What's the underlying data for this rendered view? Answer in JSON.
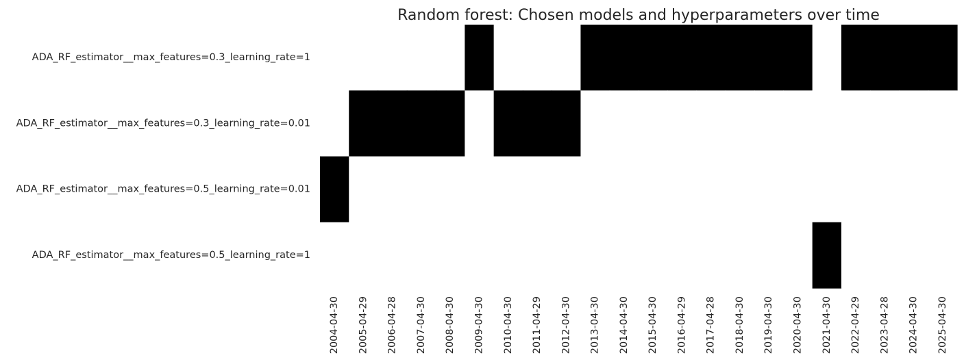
{
  "chart_data": {
    "type": "heatmap",
    "title": "Random forest: Chosen models and hyperparameters over time",
    "xlabel": "",
    "ylabel": "",
    "colorbar": false,
    "colors": {
      "selected": "#000000",
      "not_selected": "#ffffff",
      "text": "#262626"
    },
    "rows": [
      "ADA_RF_estimator__max_features=0.3_learning_rate=1",
      "ADA_RF_estimator__max_features=0.3_learning_rate=0.01",
      "ADA_RF_estimator__max_features=0.5_learning_rate=0.01",
      "ADA_RF_estimator__max_features=0.5_learning_rate=1"
    ],
    "columns": [
      "2004-04-30",
      "2005-04-29",
      "2006-04-28",
      "2007-04-30",
      "2008-04-30",
      "2009-04-30",
      "2010-04-30",
      "2011-04-29",
      "2012-04-30",
      "2013-04-30",
      "2014-04-30",
      "2015-04-30",
      "2016-04-29",
      "2017-04-28",
      "2018-04-30",
      "2019-04-30",
      "2020-04-30",
      "2021-04-30",
      "2022-04-29",
      "2023-04-28",
      "2024-04-30",
      "2025-04-30"
    ],
    "values": [
      [
        0,
        0,
        0,
        0,
        0,
        1,
        0,
        0,
        0,
        1,
        1,
        1,
        1,
        1,
        1,
        1,
        1,
        0,
        1,
        1,
        1,
        1
      ],
      [
        0,
        1,
        1,
        1,
        1,
        0,
        1,
        1,
        1,
        0,
        0,
        0,
        0,
        0,
        0,
        0,
        0,
        0,
        0,
        0,
        0,
        0
      ],
      [
        1,
        0,
        0,
        0,
        0,
        0,
        0,
        0,
        0,
        0,
        0,
        0,
        0,
        0,
        0,
        0,
        0,
        0,
        0,
        0,
        0,
        0
      ],
      [
        0,
        0,
        0,
        0,
        0,
        0,
        0,
        0,
        0,
        0,
        0,
        0,
        0,
        0,
        0,
        0,
        0,
        1,
        0,
        0,
        0,
        0
      ]
    ]
  }
}
